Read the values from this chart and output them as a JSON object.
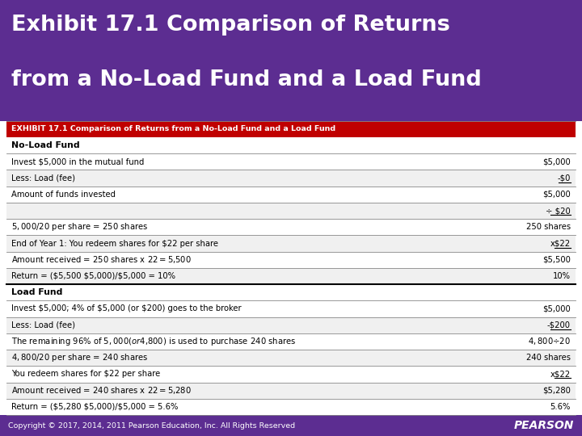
{
  "title_line1": "Exhibit 17.1 Comparison of Returns",
  "title_line2": "from a No-Load Fund and a Load Fund",
  "title_bg": "#5c2d91",
  "title_color": "#ffffff",
  "exhibit_header": "EXHIBIT 17.1 Comparison of Returns from a No-Load Fund and a Load Fund",
  "exhibit_header_bg": "#c00000",
  "exhibit_header_color": "#ffffff",
  "footer_text": "Copyright © 2017, 2014, 2011 Pearson Education, Inc. All Rights Reserved",
  "footer_bg": "#5c2d91",
  "footer_color": "#ffffff",
  "table_bg_alt": "#f0f0f0",
  "table_bg_main": "#ffffff",
  "table_rows": [
    {
      "label": "No-Load Fund",
      "value": "",
      "bold": true,
      "section_header": true,
      "bg": "#ffffff",
      "line_bottom": true
    },
    {
      "label": "Invest $5,000 in the mutual fund",
      "value": "$5,000",
      "bold": false,
      "bg": "#ffffff",
      "line_bottom": true
    },
    {
      "label": "Less: Load (fee)",
      "value": "-$0",
      "bold": false,
      "bg": "#f0f0f0",
      "underline_value": true,
      "line_bottom": true
    },
    {
      "label": "Amount of funds invested",
      "value": "$5,000",
      "bold": false,
      "bg": "#ffffff",
      "line_bottom": true
    },
    {
      "label": "",
      "value": "÷ $20",
      "bold": false,
      "bg": "#f0f0f0",
      "underline_value": true,
      "line_bottom": true
    },
    {
      "label": "$5,000/$20 per share = 250 shares",
      "value": "250 shares",
      "bold": false,
      "bg": "#ffffff",
      "line_bottom": true
    },
    {
      "label": "End of Year 1: You redeem shares for $22 per share",
      "value": "x$22",
      "bold": false,
      "bg": "#f0f0f0",
      "underline_value": true,
      "line_bottom": true
    },
    {
      "label": "Amount received = 250 shares x $22 = $5,500",
      "value": "$5,500",
      "bold": false,
      "bg": "#ffffff",
      "line_bottom": true
    },
    {
      "label": "Return = ($5,500 $5,000)/$5,000 = 10%",
      "value": "10%",
      "bold": false,
      "bg": "#f0f0f0",
      "line_bottom": true,
      "thick_bottom": true
    },
    {
      "label": "Load Fund",
      "value": "",
      "bold": true,
      "section_header": true,
      "bg": "#ffffff",
      "line_bottom": true
    },
    {
      "label": "Invest $5,000; 4% of $5,000 (or $200) goes to the broker",
      "value": "$5,000",
      "bold": false,
      "bg": "#ffffff",
      "line_bottom": true
    },
    {
      "label": "Less: Load (fee)",
      "value": "-$200",
      "bold": false,
      "bg": "#f0f0f0",
      "underline_value": true,
      "line_bottom": true
    },
    {
      "label": "The remaining 96% of $5,000 (or $4,800) is used to purchase 240 shares",
      "value": "$4,800 ÷ $20",
      "bold": false,
      "bg": "#ffffff",
      "line_bottom": true
    },
    {
      "label": "$4,800/$20 per share = 240 shares",
      "value": "240 shares",
      "bold": false,
      "bg": "#f0f0f0",
      "line_bottom": true
    },
    {
      "label": "You redeem shares for $22 per share",
      "value": "x$22",
      "bold": false,
      "bg": "#ffffff",
      "underline_value": true,
      "line_bottom": true
    },
    {
      "label": "Amount received = 240 shares x $22 = $5,280",
      "value": "$5,280",
      "bold": false,
      "bg": "#f0f0f0",
      "line_bottom": true
    },
    {
      "label": "Return = ($5,280 $5,000)/$5,000 = 5.6%",
      "value": "5.6%",
      "bold": false,
      "bg": "#ffffff",
      "line_bottom": true
    }
  ]
}
